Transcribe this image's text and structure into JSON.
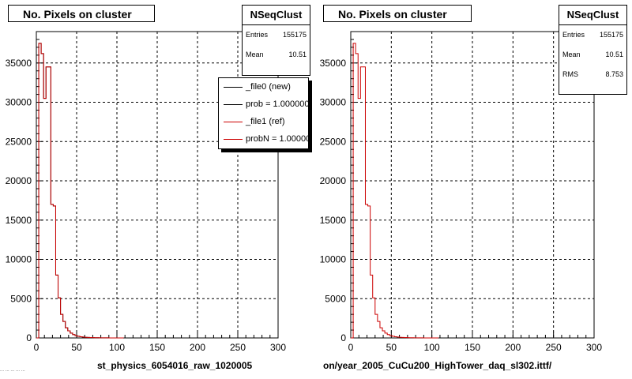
{
  "footer_text": "... ... ... ... ...",
  "panels": [
    {
      "title": "No. Pixels on cluster",
      "stats": {
        "name": "NSeqClust",
        "rows": [
          {
            "label": "Entries",
            "value": "155175"
          },
          {
            "label": "Mean",
            "value": "10.51"
          }
        ]
      },
      "legend": [
        {
          "label": "_file0 (new)",
          "color": "#000000"
        },
        {
          "label": "prob = 1.000000",
          "color": "#000000"
        },
        {
          "label": "_file1 (ref)",
          "color": "#cc0000"
        },
        {
          "label": "probN = 1.000000",
          "color": "#cc0000"
        }
      ],
      "xtitle": "st_physics_6054016_raw_1020005"
    },
    {
      "title": "No. Pixels on cluster",
      "stats": {
        "name": "NSeqClust",
        "rows": [
          {
            "label": "Entries",
            "value": "155175"
          },
          {
            "label": "Mean",
            "value": "10.51"
          },
          {
            "label": "RMS",
            "value": "8.753"
          }
        ]
      },
      "legend": [],
      "xtitle": "on/year_2005_CuCu200_HighTower_daq_sl302.ittf/"
    }
  ],
  "chart_data": [
    {
      "type": "bar",
      "title": "No. Pixels on cluster",
      "xlim": [
        0,
        300
      ],
      "ylim": [
        0,
        39000
      ],
      "xticks": [
        "0",
        "50",
        "100",
        "150",
        "200",
        "250",
        "300"
      ],
      "yticks": [
        "0",
        "5000",
        "10000",
        "15000",
        "20000",
        "25000",
        "30000",
        "35000"
      ],
      "grid": true,
      "bin_width": 3,
      "series": [
        {
          "name": "_file0 (new)",
          "color": "#000000",
          "values": [
            0,
            37500,
            36200,
            30500,
            34500,
            34500,
            17000,
            16800,
            8000,
            5100,
            3000,
            2100,
            1300,
            900,
            620,
            430,
            290,
            210,
            150,
            110,
            80,
            60,
            45,
            35,
            28,
            22,
            17,
            12,
            9,
            7,
            5,
            4,
            3,
            2,
            2,
            1
          ]
        },
        {
          "name": "_file1 (ref)",
          "color": "#cc0000",
          "values": [
            0,
            37500,
            36200,
            30500,
            34500,
            34500,
            17000,
            16800,
            8000,
            5100,
            3000,
            2100,
            1300,
            900,
            620,
            430,
            290,
            210,
            150,
            110,
            80,
            60,
            45,
            35,
            28,
            22,
            17,
            12,
            9,
            7,
            5,
            4,
            3,
            2,
            2,
            1
          ]
        }
      ]
    },
    {
      "type": "bar",
      "title": "No. Pixels on cluster",
      "xlim": [
        0,
        300
      ],
      "ylim": [
        0,
        39000
      ],
      "xticks": [
        "0",
        "50",
        "100",
        "150",
        "200",
        "250",
        "300"
      ],
      "yticks": [
        "0",
        "5000",
        "10000",
        "15000",
        "20000",
        "25000",
        "30000",
        "35000"
      ],
      "grid": true,
      "bin_width": 3,
      "series": [
        {
          "name": "",
          "color": "#cc0000",
          "values": [
            0,
            37500,
            36200,
            30500,
            34500,
            34500,
            17000,
            16800,
            8000,
            5100,
            3000,
            2100,
            1300,
            900,
            620,
            430,
            290,
            210,
            150,
            110,
            80,
            60,
            45,
            35,
            28,
            22,
            17,
            12,
            9,
            7,
            5,
            4,
            3,
            2,
            2,
            1
          ]
        }
      ]
    }
  ]
}
